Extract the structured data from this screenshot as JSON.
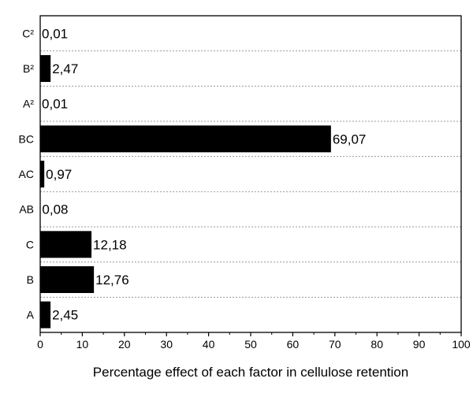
{
  "chart_data": {
    "type": "bar",
    "orientation": "horizontal",
    "categories": [
      "A",
      "B",
      "C",
      "AB",
      "AC",
      "BC",
      "A²",
      "B²",
      "C²"
    ],
    "values": [
      2.45,
      12.76,
      12.18,
      0.08,
      0.97,
      69.07,
      0.01,
      2.47,
      0.01
    ],
    "value_labels": [
      "2,45",
      "12,76",
      "12,18",
      "0,08",
      "0,97",
      "69,07",
      "0,01",
      "2,47",
      "0,01"
    ],
    "xlabel": "Percentage effect of each factor in cellulose retention",
    "ylabel": "",
    "xlim": [
      0,
      100
    ],
    "xticks": [
      0,
      10,
      20,
      30,
      40,
      50,
      60,
      70,
      80,
      90,
      100
    ],
    "grid": "horizontal dotted separators",
    "bar_color": "#000000"
  }
}
